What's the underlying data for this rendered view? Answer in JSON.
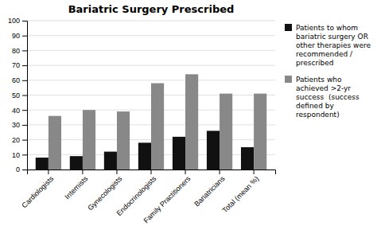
{
  "chart_data": {
    "type": "bar",
    "title": "Bariatric Surgery Prescribed",
    "categories": [
      "Cardiologists",
      "Internists",
      "Gynecologists",
      "Endocrinologists",
      "Family Practitioners",
      "Bariatricians",
      "Total (mean %)"
    ],
    "series": [
      {
        "name": "Patients to whom\nbariatric surgery OR\nother therapies were\nrecommended /\nprescribed",
        "color": "#111111",
        "values": [
          8,
          9,
          12,
          18,
          22,
          26,
          15
        ]
      },
      {
        "name": "Patients who\nachieved >2-yr\nsuccess  (success\ndefined by\nrespondent)",
        "color": "#888888",
        "values": [
          36,
          40,
          39,
          58,
          64,
          51,
          51
        ]
      }
    ],
    "ylim": [
      0,
      100
    ],
    "yticks": [
      0,
      10,
      20,
      30,
      40,
      50,
      60,
      70,
      80,
      90,
      100
    ],
    "grid": true,
    "legend": "right"
  }
}
